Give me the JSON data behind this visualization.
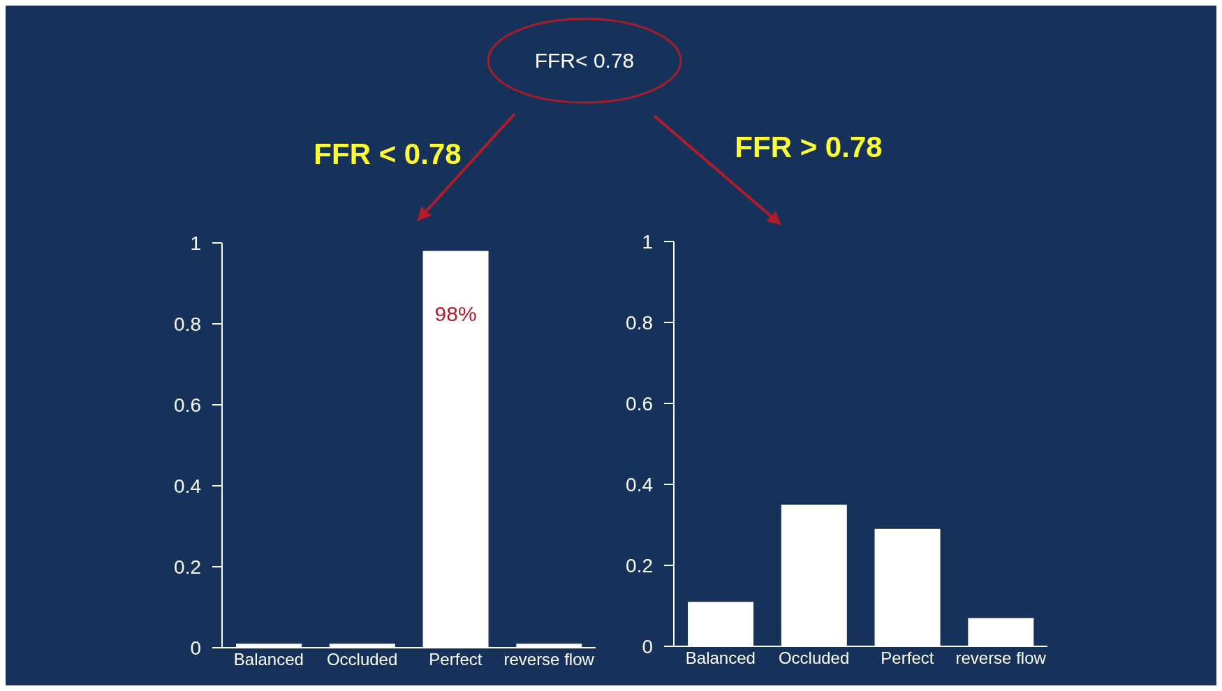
{
  "chart_data": [
    {
      "type": "bar",
      "title": "FFR < 0.78",
      "annotations": [
        "FFR< 0.78"
      ],
      "categories": [
        "Balanced",
        "Occluded",
        "Perfect",
        "reverse flow"
      ],
      "values": [
        0.01,
        0.01,
        0.98,
        0.01
      ],
      "value_labels": [
        null,
        null,
        "98%",
        null
      ],
      "color": "#ffffff",
      "ylim": [
        0,
        1
      ],
      "yticks": [
        0,
        0.2,
        0.4,
        0.6,
        0.8,
        1
      ]
    },
    {
      "type": "bar",
      "title": "FFR > 0.78",
      "categories": [
        "Balanced",
        "Occluded",
        "Perfect",
        "reverse flow"
      ],
      "values": [
        0.11,
        0.35,
        0.29,
        0.07
      ],
      "color": "#ffffff",
      "ylim": [
        0,
        1
      ],
      "yticks": [
        0,
        0.2,
        0.4,
        0.6,
        0.8,
        1
      ]
    }
  ]
}
